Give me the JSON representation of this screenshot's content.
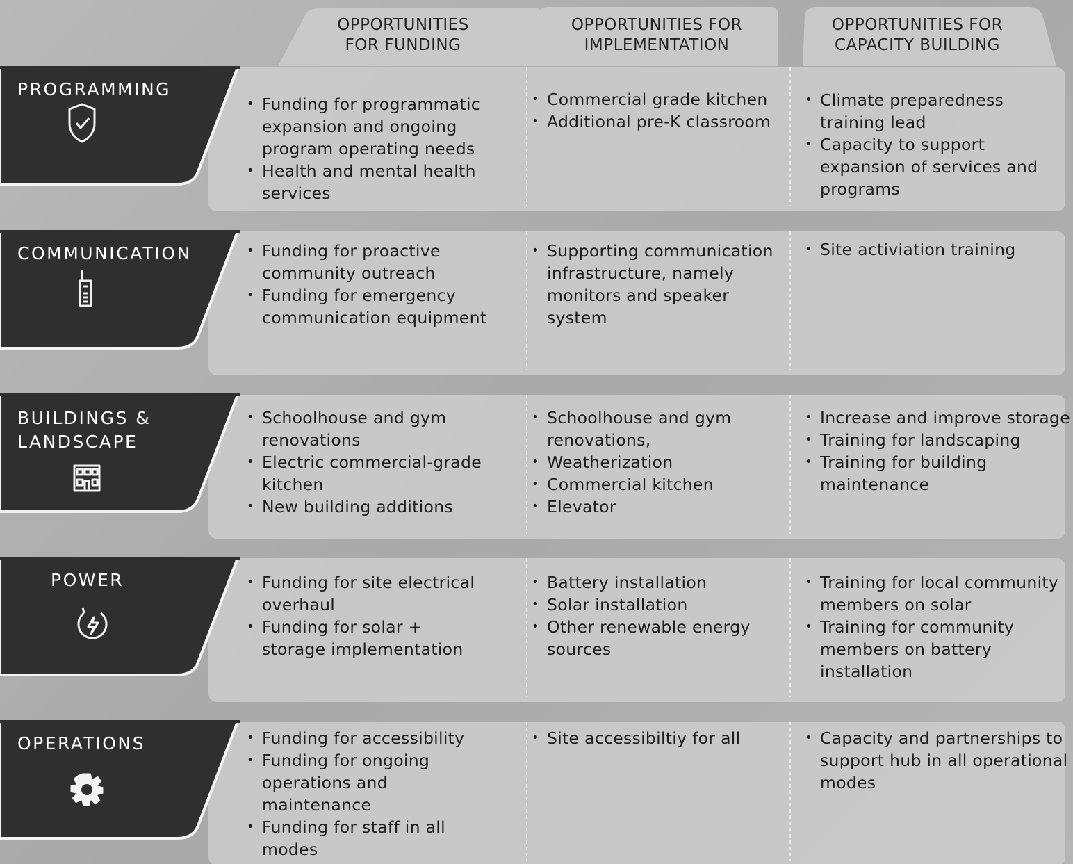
{
  "columns": [
    "OPPORTUNITIES FOR FUNDING",
    "OPPORTUNITIES FOR IMPLEMENTATION",
    "OPPORTUNITIES FOR CAPACITY BUILDING"
  ],
  "rows": [
    {
      "label": "PROGRAMMING",
      "cells": [
        [
          "Funding for programmatic expansion and ongoing program operating needs",
          "Health and mental health services"
        ],
        [
          "Commercial grade kitchen",
          "Additional pre-K classroom"
        ],
        [
          "Climate preparedness training lead",
          "Capacity to support expansion of services and programs"
        ]
      ]
    },
    {
      "label": "COMMUNICATION",
      "cells": [
        [
          "Funding for proactive community outreach",
          "Funding for emergency communication equipment"
        ],
        [
          "Supporting communication infrastructure, namely monitors and speaker system"
        ],
        [
          "Site activiation training"
        ]
      ]
    },
    {
      "label": "BUILDINGS & LANDSCAPE",
      "cells": [
        [
          "Schoolhouse and gym renovations",
          "Electric commercial-grade kitchen",
          "New building additions"
        ],
        [
          "Schoolhouse and gym renovations,",
          "Weatherization",
          "Commercial kitchen",
          "Elevator"
        ],
        [
          "Increase and improve storage",
          "Training for landscaping",
          "Training for building maintenance"
        ]
      ]
    },
    {
      "label": "POWER",
      "cells": [
        [
          "Funding for site electrical overhaul",
          "Funding for solar + storage implementation"
        ],
        [
          "Battery installation",
          "Solar installation",
          "Other renewable energy sources"
        ],
        [
          "Training for local community members on solar",
          "Training for community members on battery installation"
        ]
      ]
    },
    {
      "label": "OPERATIONS",
      "cells": [
        [
          "Funding for accessibility",
          "Funding for ongoing operations and maintenance",
          "Funding for staff in all modes"
        ],
        [
          "Site accessibiltiy for all"
        ],
        [
          "Capacity and partnerships to support hub in all operational modes"
        ]
      ]
    }
  ]
}
